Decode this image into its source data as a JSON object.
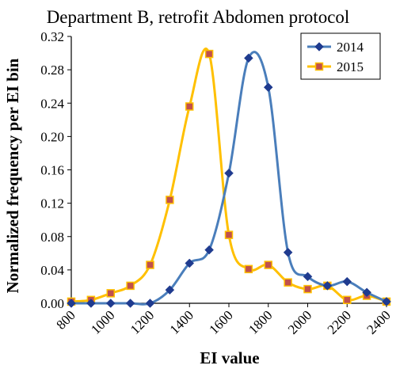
{
  "chart_data": {
    "type": "line",
    "title": "Department B, retrofit Abdomen protocol",
    "xlabel": "EI value",
    "ylabel": "Normalized frequency per EI bin",
    "xlim": [
      800,
      2400
    ],
    "ylim": [
      0,
      0.32
    ],
    "x_ticks": [
      "800",
      "1000",
      "1200",
      "1400",
      "1600",
      "1800",
      "2000",
      "2200",
      "2400"
    ],
    "y_ticks": [
      "0.00",
      "0.04",
      "0.08",
      "0.12",
      "0.16",
      "0.20",
      "0.24",
      "0.28",
      "0.32"
    ],
    "grid": false,
    "legend_position": "top-right",
    "series": [
      {
        "name": "2014",
        "color": "#4a7ebb",
        "marker": "diamond",
        "marker_color": "#1f3b8f",
        "x": [
          800,
          900,
          1000,
          1100,
          1200,
          1300,
          1400,
          1500,
          1600,
          1700,
          1800,
          1900,
          2000,
          2100,
          2200,
          2300,
          2400
        ],
        "y": [
          0.0,
          0.0,
          0.0,
          0.0,
          0.0,
          0.016,
          0.048,
          0.064,
          0.156,
          0.294,
          0.259,
          0.061,
          0.032,
          0.021,
          0.026,
          0.013,
          0.002
        ]
      },
      {
        "name": "2015",
        "color": "#ffc000",
        "marker": "square",
        "marker_color": "#c0504d",
        "x": [
          800,
          900,
          1000,
          1100,
          1200,
          1300,
          1400,
          1500,
          1600,
          1700,
          1800,
          1900,
          2000,
          2100,
          2200,
          2300,
          2400
        ],
        "y": [
          0.002,
          0.004,
          0.012,
          0.021,
          0.046,
          0.124,
          0.236,
          0.299,
          0.082,
          0.041,
          0.046,
          0.025,
          0.017,
          0.021,
          0.004,
          0.009,
          0.002
        ]
      }
    ]
  }
}
